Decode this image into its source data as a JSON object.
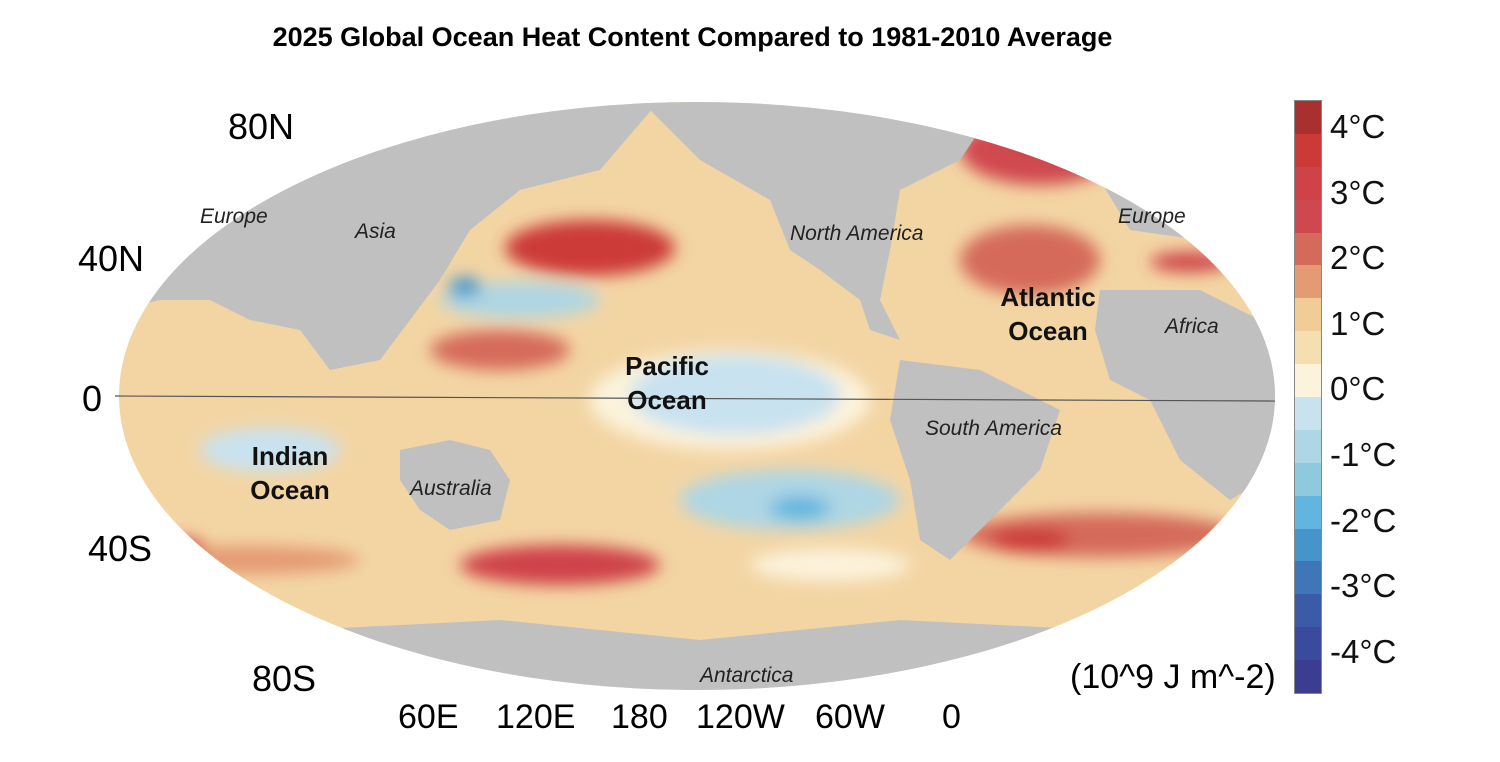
{
  "title": "2025 Global Ocean Heat Content Compared to 1981-2010 Average",
  "lat_labels": [
    "80N",
    "40N",
    "0",
    "40S",
    "80S"
  ],
  "lon_labels": [
    "60E",
    "120E",
    "180",
    "120W",
    "60W",
    "0"
  ],
  "region_labels": {
    "europe_w": "Europe",
    "asia": "Asia",
    "north_america": "North America",
    "europe_e": "Europe",
    "africa": "Africa",
    "south_america": "South America",
    "australia": "Australia",
    "antarctica": "Antarctica"
  },
  "ocean_labels": {
    "pacific_1": "Pacific",
    "pacific_2": "Ocean",
    "atlantic_1": "Atlantic",
    "atlantic_2": "Ocean",
    "indian_1": "Indian",
    "indian_2": "Ocean"
  },
  "colorbar": {
    "ticks": [
      "4",
      "3",
      "2",
      "1",
      "0",
      "-1",
      "-2",
      "-3",
      "-4"
    ],
    "tick_unit": "°C",
    "unit_label": "(10^9 J m^-2)",
    "colors": [
      "#a8302e",
      "#cc3a38",
      "#cf4248",
      "#d0484f",
      "#d56a5a",
      "#e49a72",
      "#f1cc96",
      "#f5deb0",
      "#fcf3dc",
      "#c8e2f0",
      "#aed6e4",
      "#8ec9de",
      "#62b5df",
      "#4595cb",
      "#3f76b7",
      "#3c5ba6",
      "#3a4a9c",
      "#3b3d91"
    ]
  }
}
